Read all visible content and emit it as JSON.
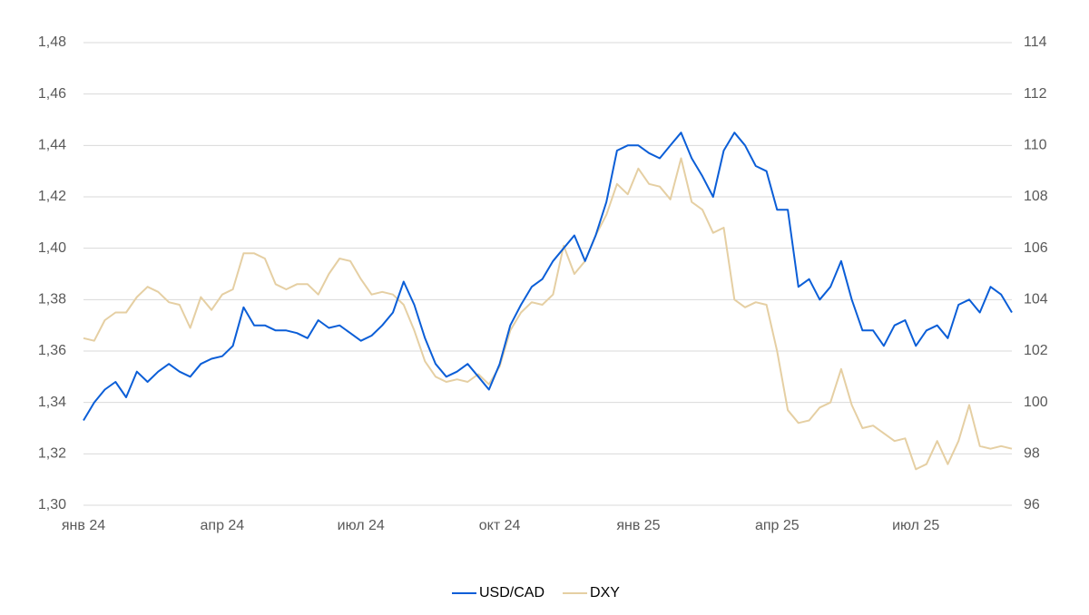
{
  "chart_data": {
    "type": "line",
    "categories": [
      "янв 24",
      null,
      null,
      null,
      null,
      null,
      null,
      null,
      null,
      null,
      null,
      null,
      null,
      "апр 24",
      null,
      null,
      null,
      null,
      null,
      null,
      null,
      null,
      null,
      null,
      null,
      null,
      "июл 24",
      null,
      null,
      null,
      null,
      null,
      null,
      null,
      null,
      null,
      null,
      null,
      null,
      "окт 24",
      null,
      null,
      null,
      null,
      null,
      null,
      null,
      null,
      null,
      null,
      null,
      null,
      "янв 25",
      null,
      null,
      null,
      null,
      null,
      null,
      null,
      null,
      null,
      null,
      null,
      null,
      "апр 25",
      null,
      null,
      null,
      null,
      null,
      null,
      null,
      null,
      null,
      null,
      null,
      null,
      "июл 25",
      null,
      null,
      null,
      null,
      null,
      null,
      null,
      null,
      null
    ],
    "series": [
      {
        "name": "USD/CAD",
        "color": "#0b5ed7",
        "values": [
          1.333,
          1.34,
          1.345,
          1.348,
          1.342,
          1.352,
          1.348,
          1.352,
          1.355,
          1.352,
          1.35,
          1.355,
          1.357,
          1.358,
          1.362,
          1.377,
          1.37,
          1.37,
          1.368,
          1.368,
          1.367,
          1.365,
          1.372,
          1.369,
          1.37,
          1.367,
          1.364,
          1.366,
          1.37,
          1.375,
          1.387,
          1.378,
          1.365,
          1.355,
          1.35,
          1.352,
          1.355,
          1.35,
          1.345,
          1.355,
          1.37,
          1.378,
          1.385,
          1.388,
          1.395,
          1.4,
          1.405,
          1.395,
          1.405,
          1.418,
          1.438,
          1.44,
          1.44,
          1.437,
          1.435,
          1.44,
          1.445,
          1.435,
          1.428,
          1.42,
          1.438,
          1.445,
          1.44,
          1.432,
          1.43,
          1.415,
          1.415,
          1.385,
          1.388,
          1.38,
          1.385,
          1.395,
          1.38,
          1.368,
          1.368,
          1.362,
          1.37,
          1.372,
          1.362,
          1.368,
          1.37,
          1.365,
          1.378,
          1.38,
          1.375,
          1.385,
          1.382,
          1.375
        ]
      },
      {
        "name": "DXY",
        "color": "#e5cfa3",
        "axis": "y2",
        "values": [
          102.5,
          102.4,
          103.2,
          103.5,
          103.5,
          104.1,
          104.5,
          104.3,
          103.9,
          103.8,
          102.9,
          104.1,
          103.6,
          104.2,
          104.4,
          105.8,
          105.8,
          105.6,
          104.6,
          104.4,
          104.6,
          104.6,
          104.2,
          105.0,
          105.6,
          105.5,
          104.8,
          104.2,
          104.3,
          104.2,
          103.8,
          102.8,
          101.6,
          101.0,
          100.8,
          100.9,
          100.8,
          101.1,
          100.7,
          101.4,
          102.8,
          103.5,
          103.9,
          103.8,
          104.2,
          106.1,
          105.0,
          105.5,
          106.5,
          107.3,
          108.5,
          108.1,
          109.1,
          108.5,
          108.4,
          107.9,
          109.5,
          107.8,
          107.5,
          106.6,
          106.8,
          104.0,
          103.7,
          103.9,
          103.8,
          102.0,
          99.7,
          99.2,
          99.3,
          99.8,
          100.0,
          101.3,
          99.9,
          99.0,
          99.1,
          98.8,
          98.5,
          98.6,
          97.4,
          97.6,
          98.5,
          97.6,
          98.5,
          99.9,
          98.3,
          98.2,
          98.3,
          98.2
        ]
      }
    ],
    "ylim": [
      1.3,
      1.48
    ],
    "yticks": [
      {
        "value": 1.3,
        "label": "1,30"
      },
      {
        "value": 1.32,
        "label": "1,32"
      },
      {
        "value": 1.34,
        "label": "1,34"
      },
      {
        "value": 1.36,
        "label": "1,36"
      },
      {
        "value": 1.38,
        "label": "1,38"
      },
      {
        "value": 1.4,
        "label": "1,40"
      },
      {
        "value": 1.42,
        "label": "1,42"
      },
      {
        "value": 1.44,
        "label": "1,44"
      },
      {
        "value": 1.46,
        "label": "1,46"
      },
      {
        "value": 1.48,
        "label": "1,48"
      }
    ],
    "y2lim": [
      96,
      114
    ],
    "y2ticks": [
      96,
      98,
      100,
      102,
      104,
      106,
      108,
      110,
      112,
      114
    ],
    "grid": true,
    "legend": "bottom"
  }
}
